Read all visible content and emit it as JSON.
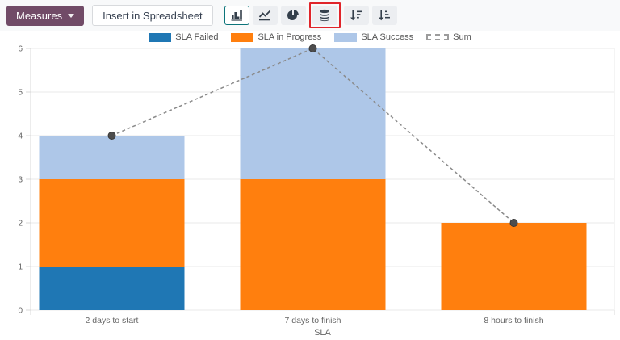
{
  "toolbar": {
    "measures_label": "Measures",
    "insert_spreadsheet_label": "Insert in Spreadsheet",
    "accent_color": "#714B67",
    "selected_button_border": "#0c747a",
    "annotation_color": "#e0242a",
    "chart_type_buttons": [
      {
        "name": "bar-chart",
        "selected": true,
        "annotated": false
      },
      {
        "name": "line-chart",
        "selected": false,
        "annotated": false
      },
      {
        "name": "pie-chart",
        "selected": false,
        "annotated": false
      },
      {
        "name": "stacked-toggle",
        "selected": false,
        "annotated": true
      },
      {
        "name": "sort-descending",
        "selected": false,
        "annotated": false
      },
      {
        "name": "sort-ascending",
        "selected": false,
        "annotated": false
      }
    ]
  },
  "chart_data": {
    "type": "bar",
    "stacked": true,
    "categories": [
      "2 days to start",
      "7 days to finish",
      "8 hours to finish"
    ],
    "series": [
      {
        "name": "SLA Failed",
        "color": "#1f77b4",
        "values": [
          1,
          0,
          0
        ]
      },
      {
        "name": "SLA in Progress",
        "color": "#ff7f0e",
        "values": [
          2,
          3,
          2
        ]
      },
      {
        "name": "SLA Success",
        "color": "#aec7e8",
        "values": [
          1,
          3,
          0
        ]
      }
    ],
    "line_series": {
      "name": "Sum",
      "values": [
        4,
        6,
        2
      ],
      "style": "dashed",
      "line_color": "#8a8a8a",
      "marker_color": "#4d4d4d"
    },
    "xlabel": "SLA",
    "ylabel": "",
    "ylim": [
      0,
      6
    ],
    "yticks": [
      0,
      1,
      2,
      3,
      4,
      5,
      6
    ],
    "grid": true,
    "legend_position": "top",
    "text_color": "#666666",
    "grid_color": "#eaeaea",
    "axis_color": "#d9d9d9"
  }
}
